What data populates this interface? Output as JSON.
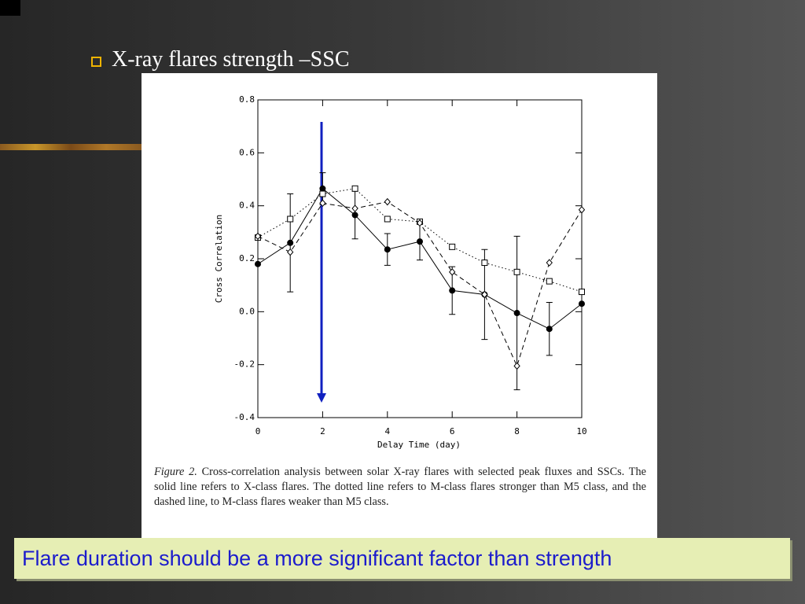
{
  "slide_title": "X-ray flares strength –SSC",
  "chart_data": {
    "type": "line",
    "x_label": "Delay Time (day)",
    "y_label": "Cross Correlation",
    "x": [
      0,
      1,
      2,
      3,
      4,
      5,
      6,
      7,
      8,
      9,
      10
    ],
    "xlim": [
      0,
      10
    ],
    "xticks": [
      0,
      2,
      4,
      6,
      8,
      10
    ],
    "ylim": [
      -0.4,
      0.8
    ],
    "yticks": [
      -0.4,
      -0.2,
      {
        "value": 0,
        "label": "0.0"
      },
      0.2,
      0.4,
      0.6,
      0.8
    ],
    "series": [
      {
        "color": "#000000",
        "line_style": "solid",
        "marker": "circle",
        "values": [
          0.18,
          0.26,
          0.465,
          0.365,
          0.235,
          0.265,
          0.08,
          0.065,
          -0.005,
          -0.065,
          0.03
        ],
        "errors": [
          null,
          0.185,
          0.06,
          0.09,
          0.06,
          0.07,
          0.09,
          0.17,
          0.29,
          0.1,
          null
        ]
      },
      {
        "color": "#000000",
        "line_style": "dotted",
        "marker": "square",
        "values": [
          0.28,
          0.35,
          0.445,
          0.465,
          0.35,
          0.34,
          0.245,
          0.185,
          0.15,
          0.115,
          0.075
        ]
      },
      {
        "color": "#000000",
        "line_style": "dashed",
        "marker": "diamond",
        "values": [
          0.285,
          0.225,
          0.41,
          0.39,
          0.415,
          0.335,
          0.15,
          0.065,
          -0.205,
          0.185,
          0.385
        ]
      }
    ]
  },
  "figure_caption": {
    "label": "Figure 2.",
    "text": "Cross-correlation analysis between solar X-ray flares with selected peak fluxes and SSCs. The solid line refers to X-class flares. The dotted line refers to M-class flares stronger than M5 class, and the dashed line, to M-class flares weaker than M5 class."
  },
  "callout": "Flare duration should be a more significant factor than strength"
}
